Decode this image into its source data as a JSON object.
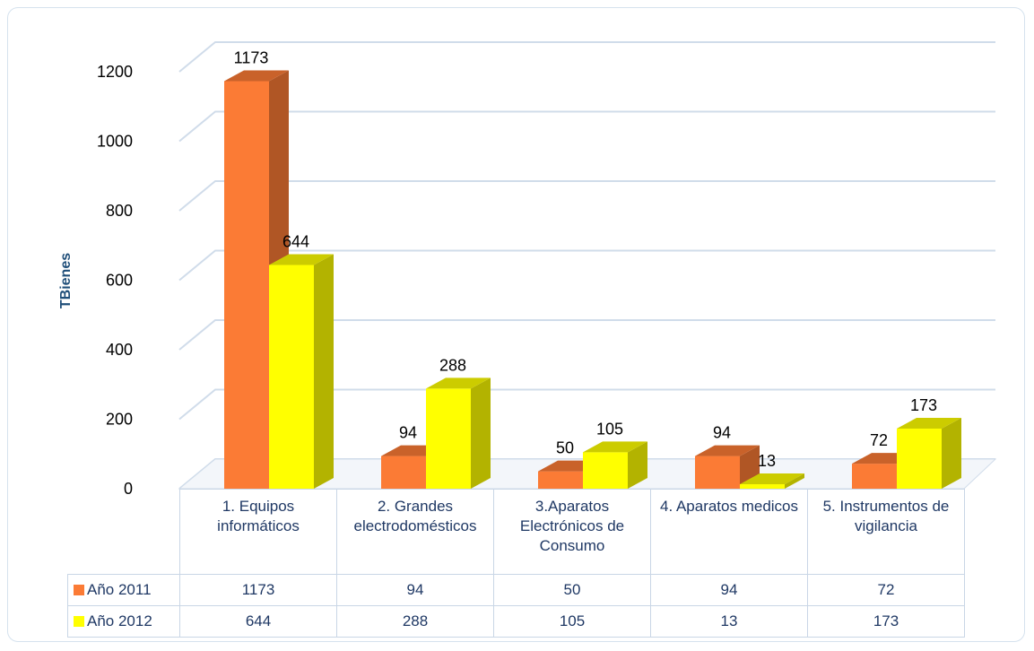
{
  "chart_data": {
    "type": "bar3d",
    "y_axis_label": "TBienes",
    "categories": [
      "1. Equipos informáticos",
      "2. Grandes electrodomésticos",
      "3.Aparatos Electrónicos de Consumo",
      "4. Aparatos medicos",
      "5. Instrumentos de vigilancia"
    ],
    "series": [
      {
        "name": "Año 2011",
        "color": "#fb7b35",
        "values": [
          1173,
          94,
          50,
          94,
          72
        ]
      },
      {
        "name": "Año 2012",
        "color": "#ffff00",
        "values": [
          644,
          288,
          105,
          13,
          173
        ]
      }
    ],
    "ylim": [
      0,
      1200
    ],
    "yticks": [
      0,
      200,
      400,
      600,
      800,
      1000,
      1200
    ],
    "grid": true,
    "data_table": true
  }
}
